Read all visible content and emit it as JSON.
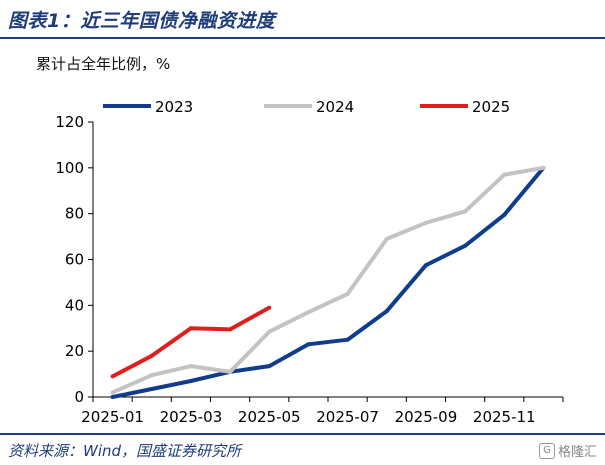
{
  "header": {
    "title": "图表1：近三年国债净融资进度"
  },
  "unit_label": "累计占全年比例，%",
  "footer": {
    "source": "资料来源：Wind，国盛证券研究所",
    "watermark": "格隆汇",
    "watermark_icon": "G"
  },
  "chart_data": {
    "type": "line",
    "x": [
      "2025-01",
      "2025-02",
      "2025-03",
      "2025-04",
      "2025-05",
      "2025-06",
      "2025-07",
      "2025-08",
      "2025-09",
      "2025-10",
      "2025-11",
      "2025-12"
    ],
    "x_tick_labels": [
      "2025-01",
      "2025-03",
      "2025-05",
      "2025-07",
      "2025-09",
      "2025-11"
    ],
    "ylim": [
      0,
      120
    ],
    "y_ticks": [
      0,
      20,
      40,
      60,
      80,
      100,
      120
    ],
    "legend_position": "top",
    "grid": false,
    "series": [
      {
        "name": "2023",
        "color": "#0f3d8c",
        "values": [
          0,
          3.5,
          7,
          11,
          13.5,
          23,
          25,
          37.5,
          57.5,
          66,
          79.5,
          100
        ]
      },
      {
        "name": "2024",
        "color": "#c3c3c3",
        "values": [
          2,
          9.5,
          13.5,
          11,
          28.5,
          37,
          45,
          69,
          76,
          81,
          97,
          100
        ]
      },
      {
        "name": "2025",
        "color": "#e01e1e",
        "values": [
          9,
          18,
          30,
          29.5,
          39,
          null,
          null,
          null,
          null,
          null,
          null,
          null
        ]
      }
    ]
  }
}
